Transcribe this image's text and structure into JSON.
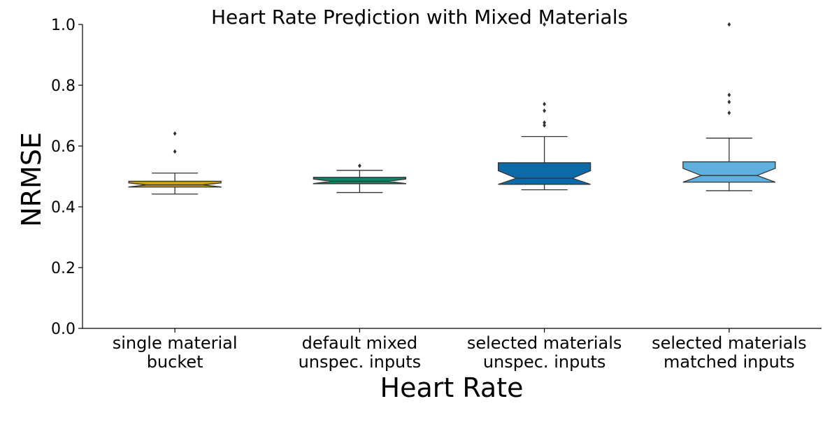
{
  "chart_data": {
    "type": "boxplot",
    "title": "Heart Rate Prediction with Mixed Materials",
    "xlabel": "Heart Rate",
    "ylabel": "NRMSE",
    "ylim": [
      0.0,
      1.0
    ],
    "yticks": [
      "0.0",
      "0.2",
      "0.4",
      "0.6",
      "0.8",
      "1.0"
    ],
    "ytick_values": [
      0.0,
      0.2,
      0.4,
      0.6,
      0.8,
      1.0
    ],
    "grid": false,
    "notched": true,
    "categories": [
      [
        "single material",
        "bucket"
      ],
      [
        "default mixed",
        "unspec. inputs"
      ],
      [
        "selected materials",
        "unspec. inputs"
      ],
      [
        "selected materials",
        "matched inputs"
      ]
    ],
    "boxes": [
      {
        "color": "#d4a017",
        "whisker_low": 0.442,
        "q1": 0.465,
        "median": 0.472,
        "q3": 0.484,
        "whisker_high": 0.511,
        "outliers": [
          0.582,
          0.641
        ]
      },
      {
        "color": "#0b8a6a",
        "whisker_low": 0.447,
        "q1": 0.476,
        "median": 0.484,
        "q3": 0.497,
        "whisker_high": 0.52,
        "outliers": [
          0.535,
          1.0
        ]
      },
      {
        "color": "#0d6aa8",
        "whisker_low": 0.456,
        "q1": 0.474,
        "median": 0.494,
        "q3": 0.545,
        "whisker_high": 0.631,
        "outliers": [
          0.668,
          0.677,
          0.716,
          0.738,
          1.0
        ]
      },
      {
        "color": "#5fb0dc",
        "whisker_low": 0.453,
        "q1": 0.481,
        "median": 0.503,
        "q3": 0.548,
        "whisker_high": 0.626,
        "outliers": [
          0.709,
          0.745,
          0.768,
          1.0
        ]
      }
    ]
  }
}
